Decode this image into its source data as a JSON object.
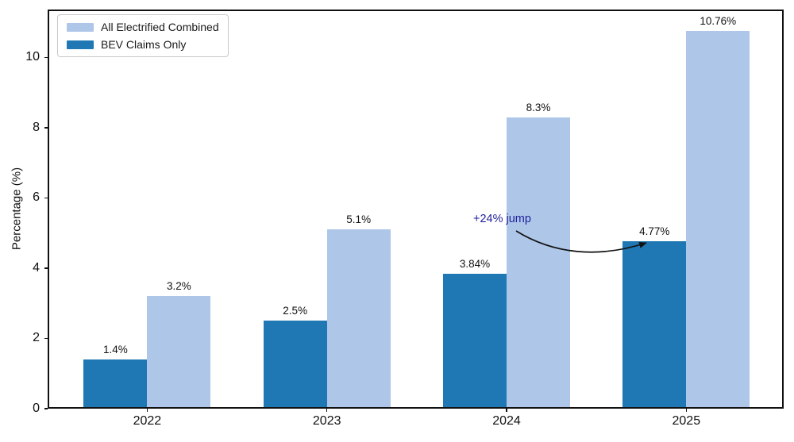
{
  "figure": {
    "background": "#ffffff"
  },
  "chart_data": {
    "type": "bar",
    "title": "",
    "xlabel": "",
    "ylabel": "Percentage (%)",
    "categories": [
      "2022",
      "2023",
      "2024",
      "2025"
    ],
    "series": [
      {
        "name": "All Electrified Combined",
        "color": "#aec7e8",
        "values": [
          3.2,
          5.1,
          8.3,
          10.76
        ],
        "value_labels": [
          "3.2%",
          "5.1%",
          "8.3%",
          "10.76%"
        ]
      },
      {
        "name": "BEV Claims Only",
        "color": "#1f77b4",
        "values": [
          1.4,
          2.5,
          3.84,
          4.77
        ],
        "value_labels": [
          "1.4%",
          "2.5%",
          "3.84%",
          "4.77%"
        ]
      }
    ],
    "yticks": [
      0,
      2,
      4,
      6,
      8,
      10
    ],
    "ylim": [
      0,
      11.37
    ],
    "grid": false,
    "legend_position": "upper-left",
    "annotation": {
      "text": "+24% jump",
      "color": "#1f1f9b",
      "arrow_color": "#111111"
    }
  }
}
